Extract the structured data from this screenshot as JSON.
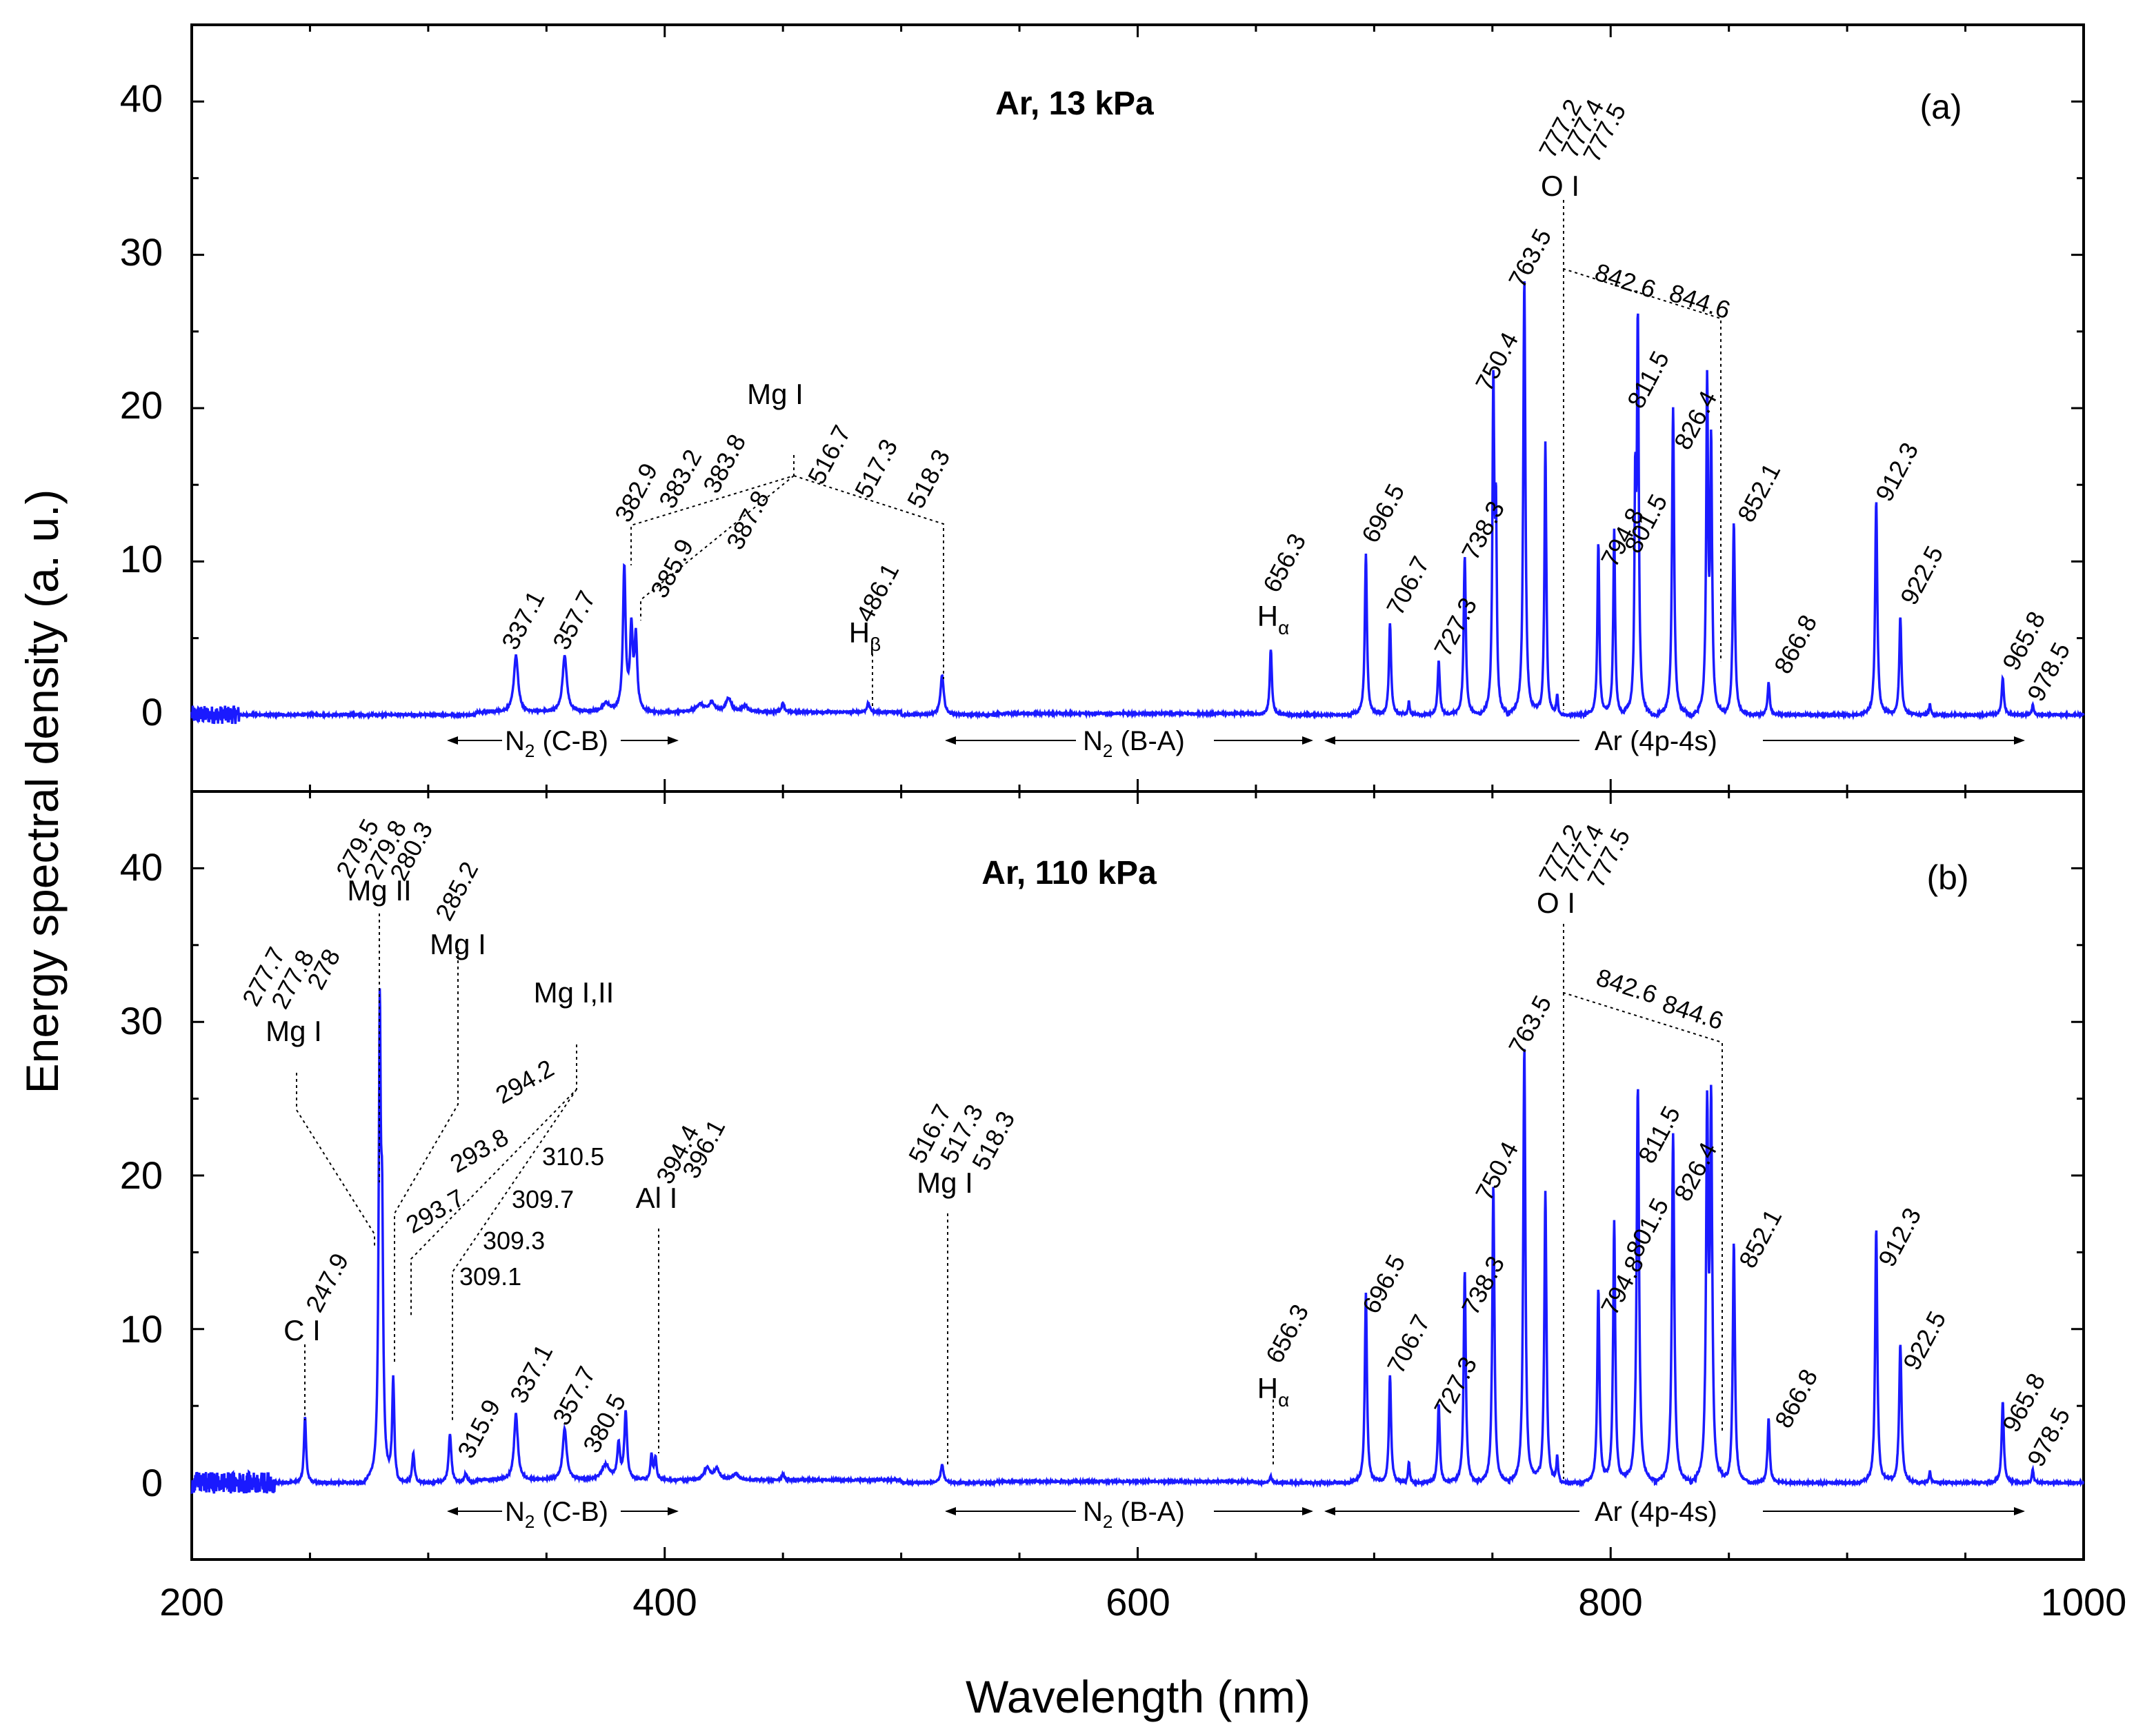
{
  "chart_data": {
    "type": "line",
    "x_axis": {
      "label": "Wavelength (nm)",
      "range": [
        200,
        1000
      ],
      "ticks": [
        200,
        400,
        600,
        800,
        1000
      ],
      "tick_labels": [
        "200",
        "400",
        "600",
        "800",
        "1000"
      ]
    },
    "y_axis": {
      "label": "Energy spectral density  (a. u.)",
      "range": [
        -5,
        45
      ],
      "ticks": [
        0,
        10,
        20,
        30,
        40
      ],
      "tick_labels": [
        "0",
        "10",
        "20",
        "30",
        "40"
      ]
    },
    "line_color": "#1a1aff",
    "panels": [
      {
        "id": "a",
        "title": "Ar, 13 kPa",
        "tag": "(a)",
        "noise_end": 220,
        "noise_amplitude": 0.6,
        "peaks": [
          {
            "x": 337.1,
            "y": 3.7,
            "w": 1.6,
            "label": "337.1"
          },
          {
            "x": 357.7,
            "y": 3.7,
            "w": 1.6,
            "label": "357.7"
          },
          {
            "x": 382.9,
            "y": 9.3,
            "w": 1.0,
            "label": "382.9"
          },
          {
            "x": 385.9,
            "y": 5.2,
            "w": 1.0
          },
          {
            "x": 387.8,
            "y": 4.7,
            "w": 1.0
          },
          {
            "x": 486.1,
            "y": 0.6,
            "w": 1.0
          },
          {
            "x": 517.3,
            "y": 2.6,
            "w": 1.2
          },
          {
            "x": 656.3,
            "y": 4.3,
            "w": 0.8
          },
          {
            "x": 696.5,
            "y": 10.5,
            "w": 0.8
          },
          {
            "x": 706.7,
            "y": 6.0,
            "w": 0.8
          },
          {
            "x": 714.7,
            "y": 0.9,
            "w": 0.6
          },
          {
            "x": 727.3,
            "y": 3.5,
            "w": 0.8
          },
          {
            "x": 738.3,
            "y": 10.4,
            "w": 0.8
          },
          {
            "x": 750.4,
            "y": 21.4,
            "w": 0.7
          },
          {
            "x": 751.5,
            "y": 12.0,
            "w": 0.6
          },
          {
            "x": 763.5,
            "y": 28.5,
            "w": 0.8
          },
          {
            "x": 772.4,
            "y": 17.8,
            "w": 0.7
          },
          {
            "x": 777.4,
            "y": 1.2,
            "w": 0.6
          },
          {
            "x": 794.8,
            "y": 11.3,
            "w": 0.7
          },
          {
            "x": 801.5,
            "y": 12.2,
            "w": 0.7
          },
          {
            "x": 810.4,
            "y": 13.4,
            "w": 0.6
          },
          {
            "x": 811.5,
            "y": 25.0,
            "w": 0.7
          },
          {
            "x": 826.4,
            "y": 20.0,
            "w": 0.8
          },
          {
            "x": 840.8,
            "y": 21.3,
            "w": 0.7
          },
          {
            "x": 842.5,
            "y": 17.2,
            "w": 0.7
          },
          {
            "x": 852.1,
            "y": 12.6,
            "w": 0.8
          },
          {
            "x": 866.8,
            "y": 2.1,
            "w": 0.8
          },
          {
            "x": 912.3,
            "y": 14.0,
            "w": 0.8
          },
          {
            "x": 922.5,
            "y": 6.4,
            "w": 0.8
          },
          {
            "x": 935.0,
            "y": 0.7,
            "w": 0.6
          },
          {
            "x": 965.8,
            "y": 2.4,
            "w": 0.8
          },
          {
            "x": 978.5,
            "y": 0.7,
            "w": 0.6
          }
        ],
        "bumps": [
          {
            "x": 375.0,
            "y": 0.6,
            "w": 3.0
          },
          {
            "x": 415.0,
            "y": 0.5,
            "w": 3.0
          },
          {
            "x": 420.0,
            "y": 0.6,
            "w": 2.0
          },
          {
            "x": 427.0,
            "y": 0.9,
            "w": 2.0
          },
          {
            "x": 434.0,
            "y": 0.4,
            "w": 2.0
          },
          {
            "x": 450.0,
            "y": 0.6,
            "w": 1.0
          }
        ],
        "species": [
          {
            "text": "Mg I"
          },
          {
            "text": "H",
            "sub": "β"
          },
          {
            "text": "H",
            "sub": "α"
          },
          {
            "text": "O I"
          }
        ],
        "labels": [
          "337.1",
          "357.7",
          "382.9",
          "383.2",
          "383.8",
          "385.9",
          "387.8",
          "516.7",
          "517.3",
          "518.3",
          "486.1",
          "656.3",
          "696.5",
          "706.7",
          "727.3",
          "738.3",
          "750.4",
          "763.5",
          "777.2",
          "777.4",
          "777.5",
          "794.8",
          "801.5",
          "811.5",
          "826.4",
          "842.6",
          "844.6",
          "852.1",
          "866.8",
          "912.3",
          "922.5",
          "965.8",
          "978.5"
        ],
        "bands": [
          {
            "text": "N",
            "sub": "2",
            "rest": " (C-B)"
          },
          {
            "text": "N",
            "sub": "2",
            "rest": " (B-A)"
          },
          {
            "text": "Ar (4p-4s)"
          }
        ]
      },
      {
        "id": "b",
        "title": "Ar, 110 kPa",
        "tag": "(b)",
        "noise_end": 235,
        "noise_amplitude": 0.7,
        "peaks": [
          {
            "x": 247.9,
            "y": 4.3,
            "w": 0.8
          },
          {
            "x": 279.5,
            "y": 29.0,
            "w": 0.8
          },
          {
            "x": 280.5,
            "y": 14.0,
            "w": 0.8
          },
          {
            "x": 285.2,
            "y": 6.5,
            "w": 0.8
          },
          {
            "x": 293.7,
            "y": 1.9,
            "w": 0.9
          },
          {
            "x": 309.2,
            "y": 3.2,
            "w": 1.0
          },
          {
            "x": 315.9,
            "y": 0.6,
            "w": 1.0
          },
          {
            "x": 337.1,
            "y": 4.3,
            "w": 1.4
          },
          {
            "x": 357.7,
            "y": 3.3,
            "w": 1.5
          },
          {
            "x": 380.5,
            "y": 2.3,
            "w": 1.0
          },
          {
            "x": 383.5,
            "y": 4.4,
            "w": 1.0
          },
          {
            "x": 394.4,
            "y": 1.6,
            "w": 0.8
          },
          {
            "x": 396.1,
            "y": 1.4,
            "w": 0.8
          },
          {
            "x": 517.3,
            "y": 1.2,
            "w": 1.0
          },
          {
            "x": 656.3,
            "y": 0.4,
            "w": 0.8
          },
          {
            "x": 696.5,
            "y": 12.4,
            "w": 0.8
          },
          {
            "x": 706.7,
            "y": 7.0,
            "w": 0.8
          },
          {
            "x": 714.7,
            "y": 1.4,
            "w": 0.6
          },
          {
            "x": 727.3,
            "y": 5.1,
            "w": 0.8
          },
          {
            "x": 738.3,
            "y": 13.8,
            "w": 0.8
          },
          {
            "x": 750.4,
            "y": 19.4,
            "w": 0.8
          },
          {
            "x": 763.5,
            "y": 28.5,
            "w": 0.8
          },
          {
            "x": 772.4,
            "y": 19.0,
            "w": 0.8
          },
          {
            "x": 777.4,
            "y": 1.6,
            "w": 0.6
          },
          {
            "x": 794.8,
            "y": 12.7,
            "w": 0.8
          },
          {
            "x": 801.5,
            "y": 17.1,
            "w": 0.8
          },
          {
            "x": 811.5,
            "y": 25.8,
            "w": 0.9
          },
          {
            "x": 826.4,
            "y": 22.7,
            "w": 0.9
          },
          {
            "x": 840.8,
            "y": 23.4,
            "w": 0.8
          },
          {
            "x": 842.5,
            "y": 23.8,
            "w": 0.8
          },
          {
            "x": 852.1,
            "y": 15.7,
            "w": 0.8
          },
          {
            "x": 866.8,
            "y": 4.2,
            "w": 0.8
          },
          {
            "x": 912.3,
            "y": 16.6,
            "w": 0.8
          },
          {
            "x": 922.5,
            "y": 9.0,
            "w": 0.9
          },
          {
            "x": 935.0,
            "y": 0.8,
            "w": 0.6
          },
          {
            "x": 965.8,
            "y": 5.3,
            "w": 0.8
          },
          {
            "x": 978.5,
            "y": 0.9,
            "w": 0.6
          }
        ],
        "bumps": [
          {
            "x": 375.0,
            "y": 1.0,
            "w": 3.0
          },
          {
            "x": 418.0,
            "y": 0.8,
            "w": 2.0
          },
          {
            "x": 422.0,
            "y": 0.7,
            "w": 2.0
          },
          {
            "x": 430.0,
            "y": 0.4,
            "w": 2.0
          },
          {
            "x": 450.0,
            "y": 0.4,
            "w": 1.0
          }
        ],
        "species": [
          {
            "text": "Mg I"
          },
          {
            "text": "Mg II"
          },
          {
            "text": "Mg I"
          },
          {
            "text": "Mg I,II"
          },
          {
            "text": "C I"
          },
          {
            "text": "Al I"
          },
          {
            "text": "Mg I"
          },
          {
            "text": "H",
            "sub": "α"
          },
          {
            "text": "O I"
          }
        ],
        "labels": [
          "277.7",
          "277.8",
          "278",
          "279.5",
          "279.8",
          "280.3",
          "285.2",
          "294.2",
          "293.8",
          "293.7",
          "310.5",
          "309.7",
          "309.3",
          "309.1",
          "247.9",
          "394.4",
          "396.1",
          "516.7",
          "517.3",
          "518.3",
          "315.9",
          "337.1",
          "357.7",
          "380.5",
          "656.3",
          "696.5",
          "706.7",
          "727.3",
          "738.3",
          "750.4",
          "763.5",
          "777.2",
          "777.4",
          "777.5",
          "794.8",
          "801.5",
          "811.5",
          "826.4",
          "842.6",
          "844.6",
          "852.1",
          "866.8",
          "912.3",
          "922.5",
          "965.8",
          "978.5"
        ],
        "bands": [
          {
            "text": "N",
            "sub": "2",
            "rest": " (C-B)"
          },
          {
            "text": "N",
            "sub": "2",
            "rest": " (B-A)"
          },
          {
            "text": "Ar (4p-4s)"
          }
        ]
      }
    ]
  }
}
